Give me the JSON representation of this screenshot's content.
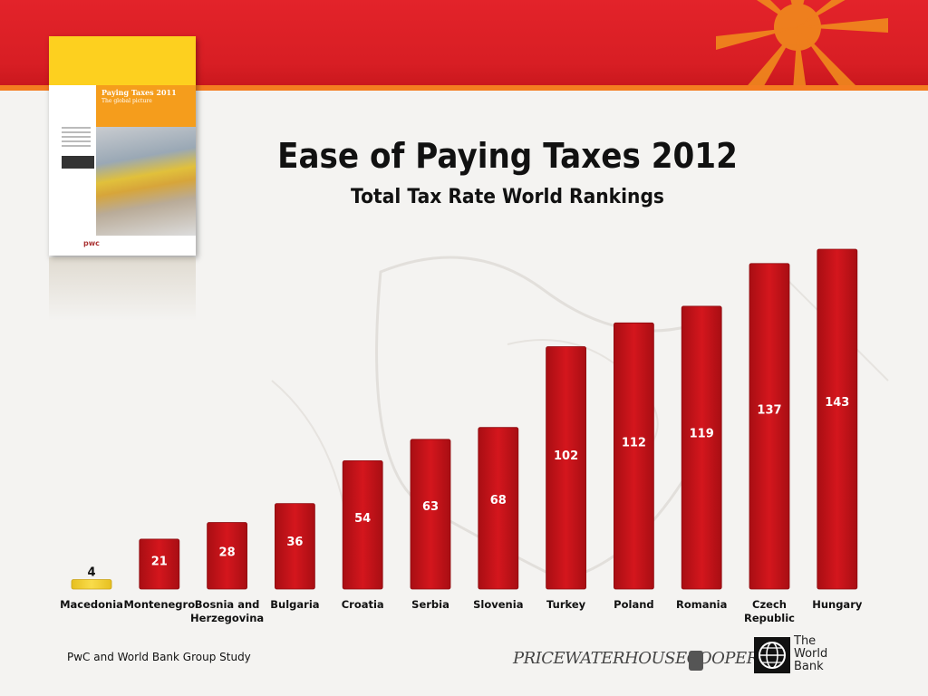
{
  "slide": {
    "title": "Ease of Paying Taxes 2012",
    "subtitle": "Total Tax Rate World Rankings",
    "footer": "PwC and World Bank Group Study",
    "pwc_logo": "PRICEWATERHOUSECOOPERS",
    "worldbank_logo": [
      "The",
      "World",
      "Bank"
    ],
    "cover": {
      "title": "Paying Taxes 2011",
      "subtitle": "The global picture",
      "brand": "pwc"
    }
  },
  "colors": {
    "banner": "#d81e24",
    "banner_line": "#f47d20",
    "bar_red": "#c8151b",
    "bar_highlight": "#f7d331",
    "label_white": "#ffffff",
    "label_dark": "#111111"
  },
  "chart_data": {
    "type": "bar",
    "title": "Ease of Paying Taxes 2012",
    "subtitle": "Total Tax Rate World Rankings",
    "categories": [
      "Macedonia",
      "Montenegro",
      "Bosnia and Herzegovina",
      "Bulgaria",
      "Croatia",
      "Serbia",
      "Slovenia",
      "Turkey",
      "Poland",
      "Romania",
      "Czech Republic",
      "Hungary"
    ],
    "category_lines": [
      [
        "Macedonia"
      ],
      [
        "Montenegro"
      ],
      [
        "Bosnia and",
        "Herzegovina"
      ],
      [
        "Bulgaria"
      ],
      [
        "Croatia"
      ],
      [
        "Serbia"
      ],
      [
        "Slovenia"
      ],
      [
        "Turkey"
      ],
      [
        "Poland"
      ],
      [
        "Romania"
      ],
      [
        "Czech",
        "Republic"
      ],
      [
        "Hungary"
      ]
    ],
    "values": [
      4,
      21,
      28,
      36,
      54,
      63,
      68,
      102,
      112,
      119,
      137,
      143
    ],
    "highlight_index": 0,
    "ylim": [
      0,
      143
    ],
    "grid": false,
    "legend": "none"
  }
}
